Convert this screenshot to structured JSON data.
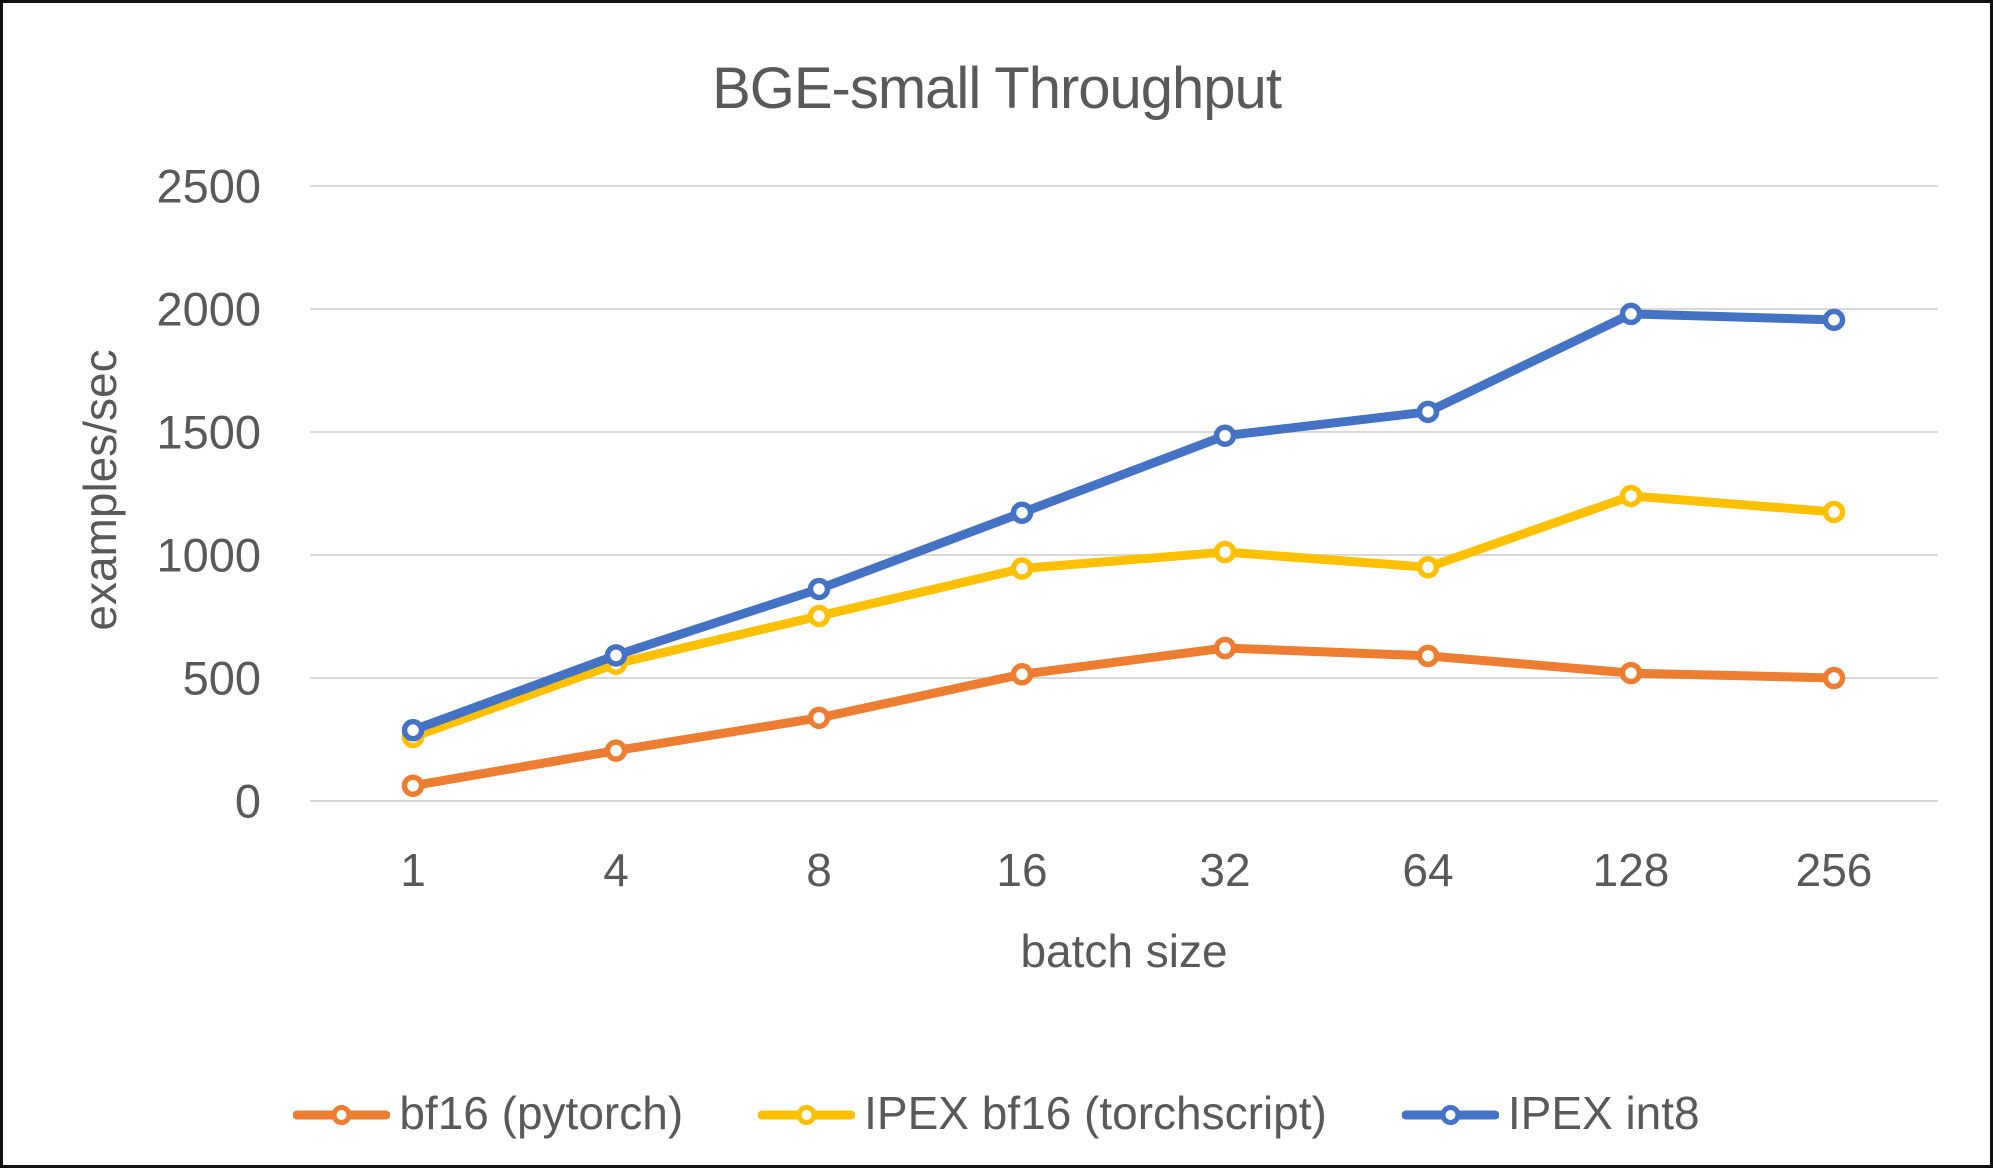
{
  "chart_data": {
    "type": "line",
    "title": "BGE-small Throughput",
    "xlabel": "batch size",
    "ylabel": "examples/sec",
    "categories": [
      "1",
      "4",
      "8",
      "16",
      "32",
      "64",
      "128",
      "256"
    ],
    "yticks": [
      0,
      500,
      1000,
      1500,
      2000,
      2500
    ],
    "ylim": [
      0,
      2500
    ],
    "grid": true,
    "legend_position": "bottom",
    "series": [
      {
        "name": "bf16 (pytorch)",
        "color": "#ED7D31",
        "values": [
          62,
          205,
          338,
          515,
          622,
          590,
          520,
          500
        ]
      },
      {
        "name": "IPEX bf16 (torchscript)",
        "color": "#FFC000",
        "values": [
          260,
          558,
          752,
          945,
          1012,
          950,
          1240,
          1175
        ]
      },
      {
        "name": "IPEX int8",
        "color": "#4472C4",
        "values": [
          288,
          592,
          862,
          1172,
          1485,
          1582,
          1980,
          1956
        ]
      }
    ],
    "colors": {
      "text": "#595959",
      "gridline": "#D9D9D9",
      "marker_fill": "#FFFFFF",
      "background": "#FFFFFF",
      "frame_border": "#111111"
    }
  }
}
